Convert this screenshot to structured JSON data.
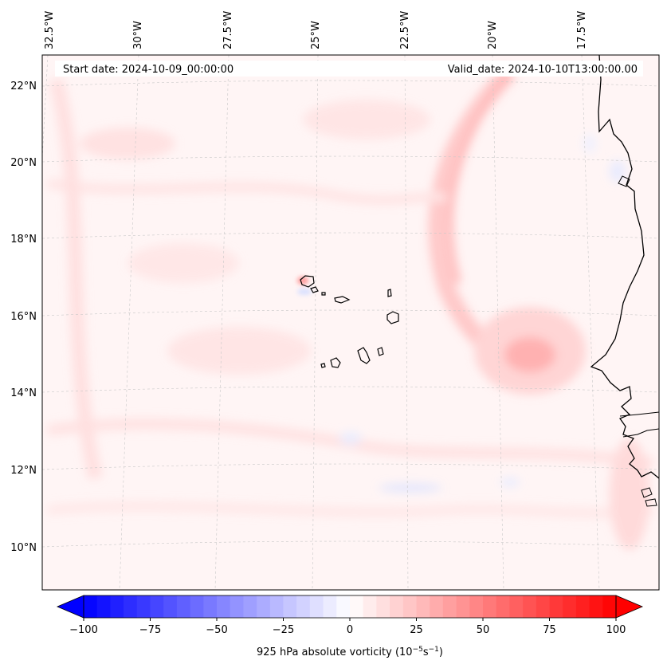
{
  "map": {
    "start_label": "Start date: 2024-10-09_00:00:00",
    "valid_label": "Valid_date: 2024-10-10T13:00:00.00",
    "lon_labels": [
      "32.5°W",
      "30°W",
      "27.5°W",
      "25°W",
      "22.5°W",
      "20°W",
      "17.5°W"
    ],
    "lat_labels": [
      "22°N",
      "20°N",
      "18°N",
      "16°N",
      "14°N",
      "12°N",
      "10°N"
    ]
  },
  "colorbar": {
    "tick_labels": [
      "−100",
      "−75",
      "−50",
      "−25",
      "0",
      "25",
      "50",
      "75",
      "100"
    ],
    "label": "925 hPa absolute vorticity (10",
    "label_exp1": "−5",
    "label_mid": "s",
    "label_exp2": "−1",
    "label_close": ")",
    "min": -100,
    "max": 100
  },
  "colors": {
    "negative": "#0000ff",
    "zero": "#ffffff",
    "positive": "#ff0000",
    "coastline": "#000000"
  }
}
